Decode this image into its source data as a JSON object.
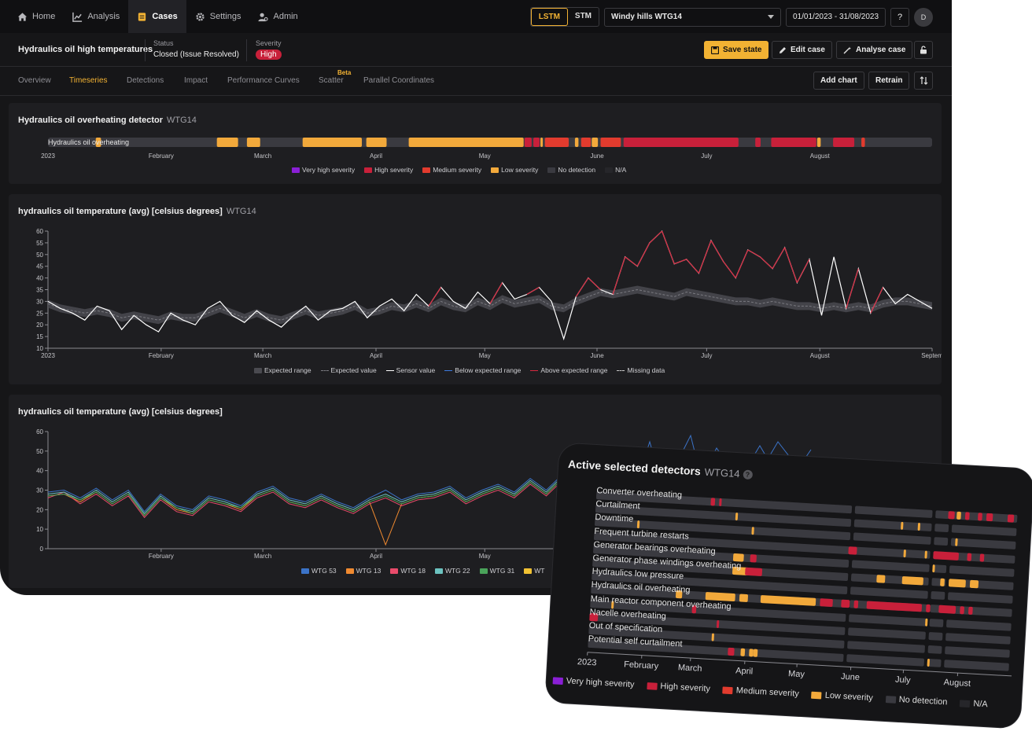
{
  "nav": {
    "items": [
      {
        "label": "Home",
        "icon": "home-icon"
      },
      {
        "label": "Analysis",
        "icon": "chart-icon"
      },
      {
        "label": "Cases",
        "icon": "cases-icon"
      },
      {
        "label": "Settings",
        "icon": "gear-icon"
      },
      {
        "label": "Admin",
        "icon": "admin-icon"
      }
    ],
    "model_lstm": "LSTM",
    "model_stm": "STM",
    "site": "Windy hills WTG14",
    "date_range": "01/01/2023 - 31/08/2023",
    "help": "?",
    "avatar": "D"
  },
  "case": {
    "title": "Hydraulics oil high temperatures",
    "status_label": "Status",
    "status_value": "Closed (Issue Resolved)",
    "severity_label": "Severity",
    "severity_value": "High",
    "save_state": "Save state",
    "edit_case": "Edit case",
    "analyse_case": "Analyse case"
  },
  "tabs": {
    "items": [
      "Overview",
      "Timeseries",
      "Detections",
      "Impact",
      "Performance Curves",
      "Scatter",
      "Parallel Coordinates"
    ],
    "beta": "Beta",
    "add_chart": "Add chart",
    "retrain": "Retrain"
  },
  "colors": {
    "accent": "#f2b233",
    "very_high": "#8a1fd6",
    "high": "#c8203a",
    "medium": "#e23b2e",
    "low": "#f2a93b",
    "no_detection": "#3a3a40",
    "na": "#26262a"
  },
  "detector_panel": {
    "title": "Hydraulics oil overheating detector",
    "subtitle": "WTG14",
    "row_label": "Hydraulics oil overheating",
    "months": [
      "2023",
      "February",
      "March",
      "April",
      "May",
      "June",
      "July",
      "August"
    ],
    "legend": [
      "Very high severity",
      "High severity",
      "Medium severity",
      "Low severity",
      "No detection",
      "N/A"
    ]
  },
  "temp_panel": {
    "title": "hydraulics oil temperature (avg) [celsius degrees]",
    "subtitle": "WTG14",
    "legend": [
      "Expected range",
      "Expected value",
      "Sensor value",
      "Below expected range",
      "Above expected range",
      "Missing data"
    ]
  },
  "fleet_panel": {
    "title": "hydraulics oil temperature (avg) [celsius degrees]",
    "legend": [
      "WTG 53",
      "WTG 13",
      "WTG 18",
      "WTG 22",
      "WTG 31",
      "WT"
    ]
  },
  "chart_data": [
    {
      "type": "line",
      "title": "hydraulics oil temperature (avg) [celsius degrees]",
      "x_ticks": [
        "2023",
        "February",
        "March",
        "April",
        "May",
        "June",
        "July",
        "August",
        "Septem"
      ],
      "ylim": [
        10,
        60
      ],
      "y_ticks": [
        10,
        15,
        20,
        25,
        30,
        35,
        40,
        45,
        50,
        55,
        60
      ],
      "series": [
        {
          "name": "Sensor value",
          "values": [
            30,
            27,
            25,
            22,
            28,
            26,
            18,
            24,
            20,
            17,
            25,
            22,
            20,
            27,
            30,
            24,
            21,
            26,
            22,
            19,
            24,
            28,
            22,
            26,
            27,
            30,
            23,
            28,
            31,
            26,
            33,
            28,
            36,
            30,
            27,
            34,
            29,
            38,
            31,
            33,
            36,
            30,
            14,
            32,
            40,
            35,
            33,
            49,
            45,
            55,
            60,
            46,
            48,
            42,
            56,
            47,
            40,
            52,
            49,
            44,
            53,
            38,
            48,
            24,
            49,
            27,
            44,
            25,
            36,
            29,
            33,
            30,
            27
          ]
        },
        {
          "name": "Expected value",
          "values": [
            29,
            27,
            26,
            25,
            26,
            25,
            23,
            24,
            23,
            22,
            24,
            23,
            23,
            25,
            27,
            25,
            23,
            25,
            23,
            22,
            24,
            26,
            24,
            25,
            26,
            28,
            25,
            26,
            28,
            27,
            29,
            27,
            30,
            28,
            27,
            30,
            28,
            31,
            29,
            30,
            31,
            28,
            27,
            30,
            32,
            34,
            33,
            34,
            35,
            34,
            33,
            32,
            34,
            33,
            32,
            31,
            30,
            30,
            29,
            30,
            29,
            28,
            28,
            27,
            28,
            27,
            28,
            27,
            29,
            30,
            30,
            29,
            28
          ]
        }
      ]
    },
    {
      "type": "line",
      "title": "hydraulics oil temperature (avg) [celsius degrees]",
      "x_ticks": [
        "February",
        "March",
        "April",
        "May"
      ],
      "ylim": [
        0,
        60
      ],
      "y_ticks": [
        0,
        10,
        20,
        30,
        40,
        50,
        60
      ],
      "series": [
        {
          "name": "WTG 53",
          "values": [
            29,
            30,
            26,
            31,
            25,
            30,
            19,
            28,
            22,
            20,
            27,
            25,
            22,
            29,
            32,
            26,
            24,
            28,
            24,
            21,
            26,
            30,
            25,
            28,
            29,
            32,
            26,
            30,
            33,
            29,
            36,
            30,
            38,
            32
          ]
        },
        {
          "name": "WTG 13",
          "values": [
            27,
            28,
            24,
            29,
            23,
            28,
            17,
            26,
            20,
            18,
            25,
            23,
            20,
            27,
            30,
            24,
            22,
            26,
            22,
            19,
            24,
            2,
            23,
            26,
            27,
            30,
            24,
            28,
            31,
            27,
            34,
            28,
            36,
            30
          ]
        },
        {
          "name": "WTG 18",
          "values": [
            26,
            29,
            23,
            28,
            22,
            27,
            16,
            25,
            19,
            17,
            24,
            22,
            19,
            26,
            29,
            23,
            21,
            25,
            21,
            18,
            23,
            26,
            22,
            25,
            26,
            29,
            23,
            27,
            30,
            26,
            33,
            27,
            35,
            29
          ]
        },
        {
          "name": "WTG 22",
          "values": [
            28,
            29,
            25,
            30,
            24,
            29,
            18,
            27,
            21,
            19,
            26,
            24,
            21,
            28,
            31,
            25,
            23,
            27,
            23,
            20,
            25,
            28,
            24,
            27,
            28,
            31,
            25,
            29,
            32,
            28,
            35,
            29,
            37,
            31
          ]
        },
        {
          "name": "WTG 31",
          "values": [
            27,
            28,
            25,
            29,
            23,
            28,
            17,
            26,
            21,
            18,
            25,
            23,
            21,
            27,
            30,
            24,
            22,
            26,
            22,
            19,
            24,
            27,
            23,
            26,
            27,
            30,
            24,
            28,
            31,
            27,
            34,
            28,
            36,
            30
          ]
        }
      ]
    }
  ],
  "overlay": {
    "title": "Active selected detectors",
    "subtitle": "WTG14",
    "help": "?",
    "detectors": [
      "Converter overheating",
      "Curtailment",
      "Downtime",
      "Frequent turbine restarts",
      "Generator bearings overheating",
      "Generator phase windings overheating",
      "Hydraulics low pressure",
      "Hydraulics oil overheating",
      "Main reactor component overheating",
      "Nacelle overheating",
      "Out of specification",
      "Potential self curtailment"
    ],
    "months": [
      "2023",
      "February",
      "March",
      "April",
      "May",
      "June",
      "July",
      "August"
    ],
    "legend": [
      "Very high severity",
      "High severity",
      "Medium severity",
      "Low severity",
      "No detection",
      "N/A"
    ]
  }
}
